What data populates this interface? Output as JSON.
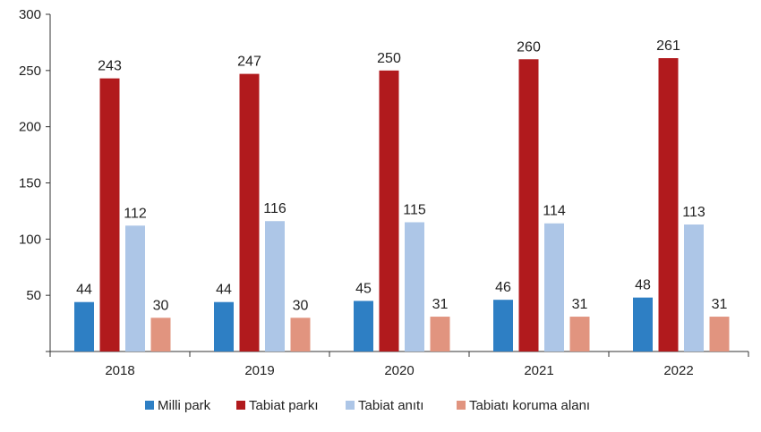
{
  "chart_data": {
    "type": "bar",
    "categories": [
      "2018",
      "2019",
      "2020",
      "2021",
      "2022"
    ],
    "series": [
      {
        "name": "Milli park",
        "color": "#2e7fc4",
        "values": [
          44,
          44,
          45,
          46,
          48
        ]
      },
      {
        "name": "Tabiat parkı",
        "color": "#b11a1d",
        "values": [
          243,
          247,
          250,
          260,
          261
        ]
      },
      {
        "name": "Tabiat anıtı",
        "color": "#adc6e7",
        "values": [
          112,
          116,
          115,
          114,
          113
        ]
      },
      {
        "name": "Tabiatı koruma alanı",
        "color": "#e1947f",
        "values": [
          30,
          30,
          31,
          31,
          31
        ]
      }
    ],
    "ylim": [
      0,
      300
    ],
    "yticks": [
      0,
      50,
      100,
      150,
      200,
      250,
      300
    ],
    "ytick_labels": [
      "",
      "50",
      "100",
      "150",
      "200",
      "250",
      "300"
    ],
    "grid": false,
    "legend_position": "bottom"
  }
}
